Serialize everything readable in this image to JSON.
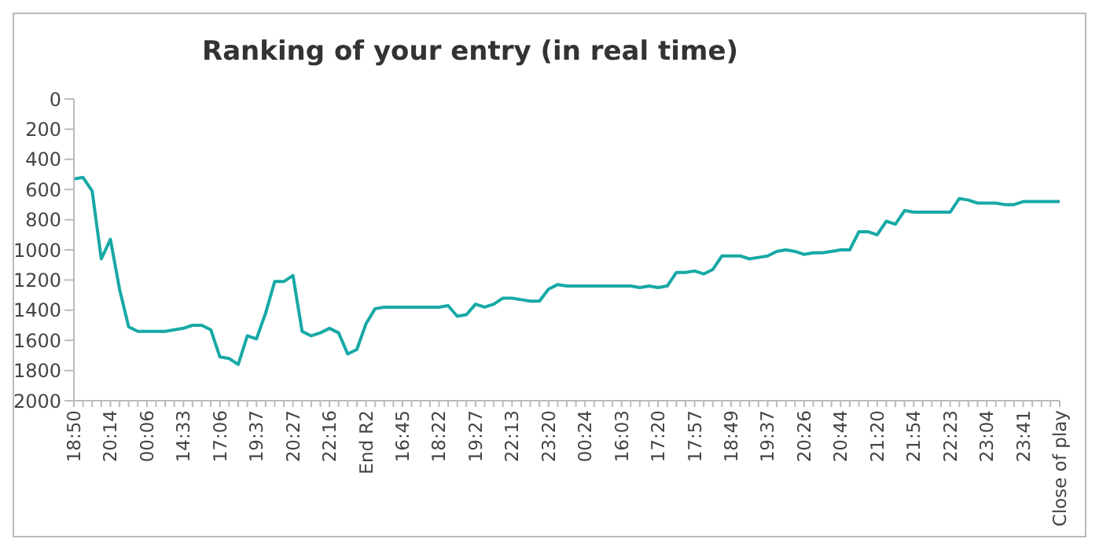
{
  "chart_data": {
    "type": "line",
    "title": "Ranking of your entry (in real time)",
    "categories": [
      "18:50",
      null,
      null,
      null,
      "20:14",
      null,
      null,
      null,
      "00:06",
      null,
      null,
      null,
      "14:33",
      null,
      null,
      null,
      "17:06",
      null,
      null,
      null,
      "19:37",
      null,
      null,
      null,
      "20:27",
      null,
      null,
      null,
      "22:16",
      null,
      null,
      null,
      "End R2",
      null,
      null,
      null,
      "16:45",
      null,
      null,
      null,
      "18:22",
      null,
      null,
      null,
      "19:27",
      null,
      null,
      null,
      "22:13",
      null,
      null,
      null,
      "23:20",
      null,
      null,
      null,
      "00:24",
      null,
      null,
      null,
      "16:03",
      null,
      null,
      null,
      "17:20",
      null,
      null,
      null,
      "17:57",
      null,
      null,
      null,
      "18:49",
      null,
      null,
      null,
      "19:37",
      null,
      null,
      null,
      "20:26",
      null,
      null,
      null,
      "20:44",
      null,
      null,
      null,
      "21:20",
      null,
      null,
      null,
      "21:54",
      null,
      null,
      null,
      "22:23",
      null,
      null,
      null,
      "23:04",
      null,
      null,
      null,
      "23:41",
      null,
      null,
      null,
      "Close of play"
    ],
    "series": [
      {
        "color": "#17a9a6",
        "values": [
          530,
          520,
          610,
          1060,
          930,
          1260,
          1510,
          1540,
          1540,
          1540,
          1540,
          1530,
          1520,
          1500,
          1500,
          1530,
          1710,
          1720,
          1760,
          1570,
          1590,
          1420,
          1210,
          1210,
          1170,
          1540,
          1570,
          1550,
          1520,
          1550,
          1690,
          1660,
          1490,
          1390,
          1380,
          1380,
          1380,
          1380,
          1380,
          1380,
          1380,
          1370,
          1440,
          1430,
          1360,
          1380,
          1360,
          1320,
          1320,
          1330,
          1340,
          1340,
          1260,
          1230,
          1240,
          1240,
          1240,
          1240,
          1240,
          1240,
          1240,
          1240,
          1250,
          1240,
          1250,
          1240,
          1150,
          1150,
          1140,
          1160,
          1130,
          1040,
          1040,
          1040,
          1060,
          1050,
          1040,
          1010,
          1000,
          1010,
          1030,
          1020,
          1020,
          1010,
          1000,
          1000,
          880,
          880,
          900,
          810,
          830,
          740,
          750,
          750,
          750,
          750,
          750,
          660,
          670,
          690,
          690,
          690,
          700,
          700,
          680,
          680,
          680,
          680,
          680
        ]
      }
    ],
    "ylim": [
      2000,
      0
    ],
    "yticks": [
      0,
      200,
      400,
      600,
      800,
      1000,
      1200,
      1400,
      1600,
      1800,
      2000
    ],
    "grid": false,
    "marker": "none",
    "line_style": "solid"
  }
}
